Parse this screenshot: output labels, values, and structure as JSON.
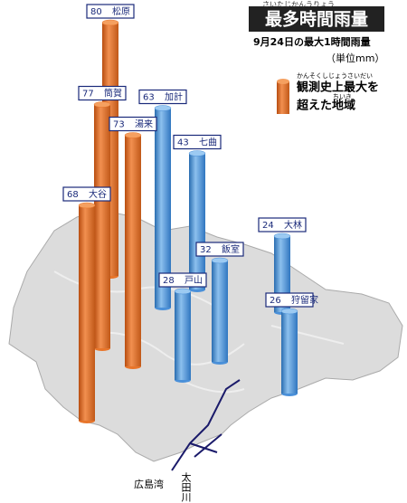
{
  "chart_data": {
    "type": "bar",
    "title": "最多時間雨量",
    "title_ruby": "さいたじかんうりょう",
    "subtitle": "9月24日の最大1時間雨量",
    "unit": "（単位mm）",
    "legend": {
      "text_1": "観測史上最大を",
      "ruby_1": "かんそくしじょうさいだい",
      "text_2": "超えた地域",
      "ruby_2": "ちいき",
      "color": "#e8752a"
    },
    "categories": [
      "松原",
      "筒賀",
      "湯来",
      "大谷",
      "加計",
      "七曲",
      "飯室",
      "戸山",
      "大林",
      "狩留家"
    ],
    "values": [
      80,
      77,
      73,
      68,
      63,
      43,
      32,
      28,
      24,
      26
    ],
    "colors": [
      "#e8752a",
      "#e8752a",
      "#e8752a",
      "#e8752a",
      "#4a90d9",
      "#4a90d9",
      "#4a90d9",
      "#4a90d9",
      "#4a90d9",
      "#4a90d9"
    ],
    "map_labels": [
      "広島湾",
      "太田川"
    ]
  }
}
